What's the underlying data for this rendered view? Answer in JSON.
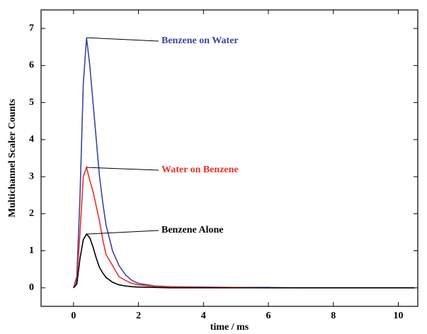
{
  "chart_data": {
    "type": "line",
    "x_label": "time / ms",
    "y_label": "Multichannel Scaler Counts",
    "x": [
      0,
      0.1,
      0.2,
      0.3,
      0.4,
      0.5,
      0.6,
      0.7,
      0.8,
      0.9,
      1.0,
      1.2,
      1.4,
      1.6,
      1.8,
      2.0,
      2.5,
      3,
      4,
      5,
      6,
      7,
      8,
      9,
      10,
      10.5
    ],
    "series": [
      {
        "name": "Benzene on Water",
        "color": "#3c44a0",
        "values": [
          0,
          0.3,
          2.5,
          5.5,
          6.75,
          6.0,
          5.0,
          4.0,
          3.0,
          2.3,
          1.7,
          1.0,
          0.6,
          0.35,
          0.2,
          0.12,
          0.05,
          0.03,
          0.02,
          0.01,
          0.01,
          0,
          0,
          0,
          0,
          0
        ]
      },
      {
        "name": "Water on Benzene",
        "color": "#e8302a",
        "values": [
          0,
          0.2,
          1.5,
          3.0,
          3.25,
          2.9,
          2.6,
          2.2,
          1.8,
          1.3,
          0.9,
          0.6,
          0.3,
          0.2,
          0.12,
          0.08,
          0.04,
          0.02,
          0.01,
          0.01,
          0,
          0,
          0,
          0,
          0,
          0
        ]
      },
      {
        "name": "Benzene Alone",
        "color": "#000000",
        "values": [
          0,
          0.1,
          0.8,
          1.3,
          1.45,
          1.35,
          1.1,
          0.8,
          0.55,
          0.4,
          0.28,
          0.15,
          0.08,
          0.05,
          0.03,
          0.02,
          0.01,
          0,
          0,
          0,
          0,
          0,
          0,
          0,
          0,
          0
        ]
      }
    ],
    "xlim": [
      -1,
      10.6
    ],
    "xticks": [
      0,
      2,
      4,
      6,
      8,
      10
    ],
    "ylim": [
      -0.5,
      7.5
    ],
    "yticks": [
      0,
      1,
      2,
      3,
      4,
      5,
      6,
      7
    ]
  }
}
